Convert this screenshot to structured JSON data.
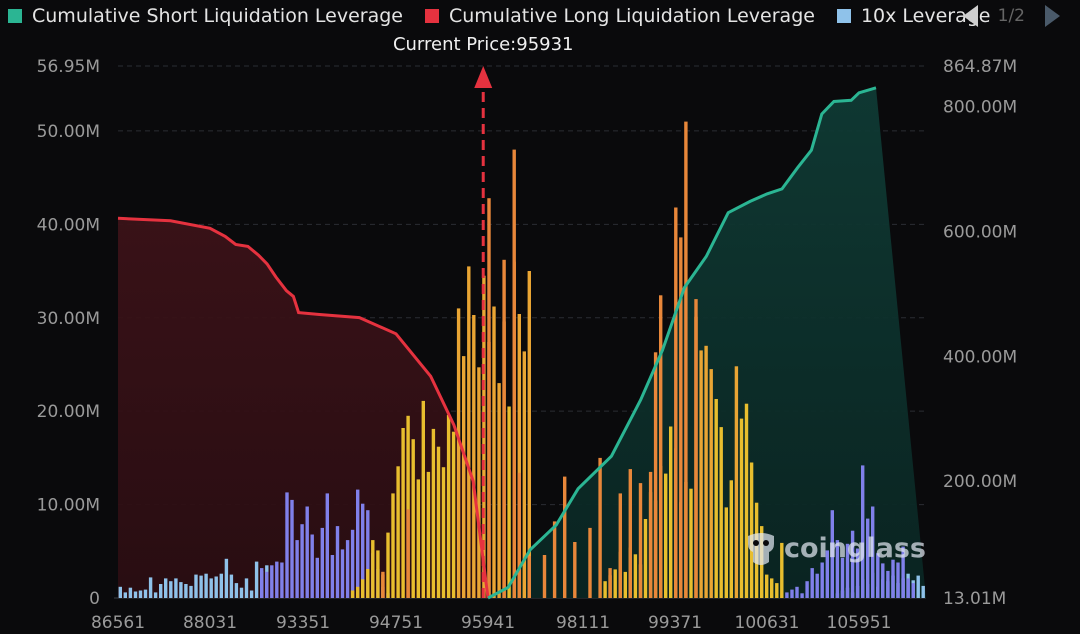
{
  "legend": {
    "items": [
      {
        "label": "Cumulative Short Liquidation Leverage",
        "color": "#2bb593"
      },
      {
        "label": "Cumulative Long Liquidation Leverage",
        "color": "#e5323f"
      },
      {
        "label": "10x Leverage",
        "color": "#8fc2ea"
      }
    ],
    "page": "1/2"
  },
  "watermark": "coinglass",
  "chart_data": {
    "type": "bar",
    "title": "",
    "current_price_label": "Current Price:95931",
    "current_price": 95931,
    "x_tick_labels": [
      "86561",
      "88031",
      "93351",
      "94751",
      "95941",
      "98111",
      "99371",
      "100631",
      "105951"
    ],
    "left_axis": {
      "ticks": [
        "0",
        "10.00M",
        "20.00M",
        "30.00M",
        "40.00M",
        "50.00M",
        "56.95M"
      ],
      "range": [
        0,
        56.95
      ]
    },
    "right_axis": {
      "ticks": [
        "13.01M",
        "200.00M",
        "400.00M",
        "600.00M",
        "800.00M",
        "864.87M"
      ],
      "range": [
        13.01,
        864.87
      ]
    },
    "bars": [
      {
        "name": "lev-low",
        "color": "#8fc2ea",
        "values": [
          1.2,
          0.6,
          1.1,
          0.7,
          0.8,
          0.9,
          2.2,
          0.6,
          1.5,
          2.1,
          1.8,
          2.1,
          1.7,
          1.5,
          1.3,
          2.5,
          2.4,
          2.6,
          2.1,
          2.3,
          2.6,
          4.2,
          2.5,
          1.6,
          1.1,
          2.1,
          0.8,
          3.9,
          2.9,
          3.5,
          0.8,
          3.1,
          2.7,
          2.3,
          2.5,
          2.9,
          2.6,
          2.2,
          1.9,
          2.5,
          1.4,
          1.6,
          2.4,
          2.1,
          2.6
        ]
      },
      {
        "name": "lev-purple",
        "color": "#8080ea",
        "values": [
          0,
          0,
          0,
          0,
          0,
          0,
          0,
          0,
          0,
          0,
          0,
          0,
          0,
          0,
          0,
          0,
          0,
          0,
          0,
          0,
          0,
          0,
          0,
          0,
          0,
          0,
          0,
          0,
          3.2,
          2.8,
          3.5,
          3.9,
          3.8,
          11.3,
          10.5,
          6.2,
          7.9,
          9.8,
          6.8,
          4.3,
          7.5,
          11.2,
          4.6,
          7.7,
          5.2,
          6.2,
          7.3,
          11.6,
          10.1,
          9.4,
          4.8,
          3.1,
          1.2,
          0.5,
          2.8,
          2.2,
          3.1,
          3.5
        ]
      },
      {
        "name": "lev-yellow",
        "color": "#e8be2e",
        "values": []
      },
      {
        "name": "lev-orange",
        "color": "#e8873a",
        "values": []
      }
    ],
    "series": [
      {
        "name": "Cumulative Long Liquidation Leverage",
        "color": "#e5323f",
        "values": []
      },
      {
        "name": "Cumulative Short Liquidation Leverage",
        "color": "#2bb593",
        "values": []
      }
    ]
  }
}
